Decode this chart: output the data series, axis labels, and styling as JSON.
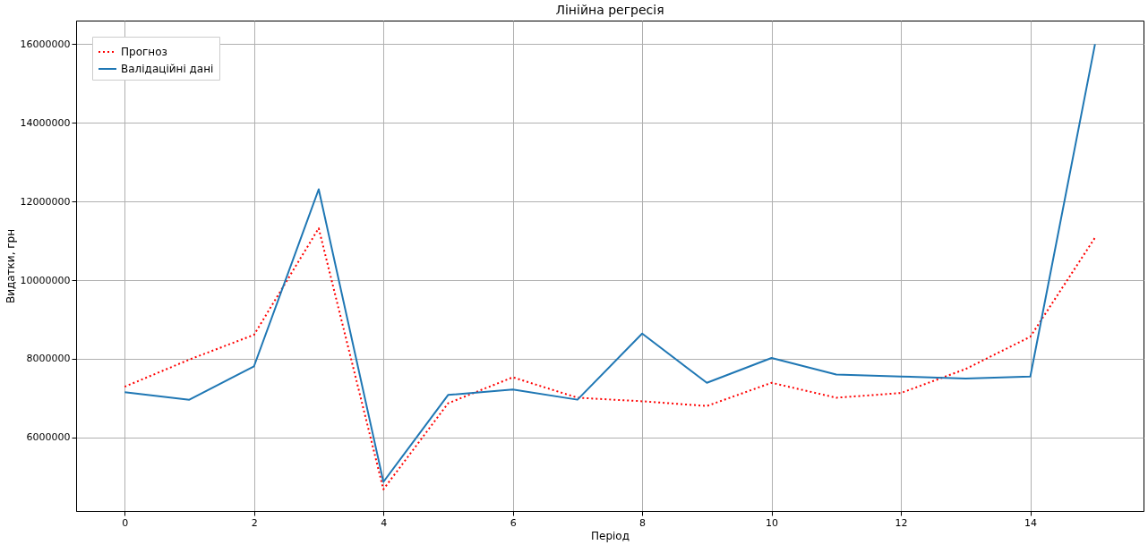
{
  "chart_data": {
    "type": "line",
    "title": "Лінійна регресія",
    "xlabel": "Період",
    "ylabel": "Видатки, грн",
    "x": [
      0,
      1,
      2,
      3,
      4,
      5,
      6,
      7,
      8,
      9,
      10,
      11,
      12,
      13,
      14,
      15
    ],
    "series": [
      {
        "name": "Прогноз",
        "color": "#ff0000",
        "line_style": "dotted",
        "values": [
          7290000,
          7980000,
          8610000,
          11320000,
          4680000,
          6870000,
          7530000,
          7010000,
          6920000,
          6800000,
          7390000,
          7010000,
          7130000,
          7740000,
          8560000,
          11080000
        ]
      },
      {
        "name": "Валідаційні дані",
        "color": "#1f77b4",
        "line_style": "solid",
        "values": [
          7150000,
          6960000,
          7810000,
          12310000,
          4870000,
          7080000,
          7220000,
          6960000,
          8640000,
          7390000,
          8020000,
          7600000,
          7550000,
          7500000,
          7550000,
          16000000
        ]
      }
    ],
    "xlim": [
      -0.75,
      15.75
    ],
    "xticks": [
      0,
      2,
      4,
      6,
      8,
      10,
      12,
      14
    ],
    "ylim": [
      4130000,
      16600000
    ],
    "yticks": [
      6000000,
      8000000,
      10000000,
      12000000,
      14000000,
      16000000
    ],
    "grid": true,
    "legend": "top left",
    "marker": "none"
  }
}
